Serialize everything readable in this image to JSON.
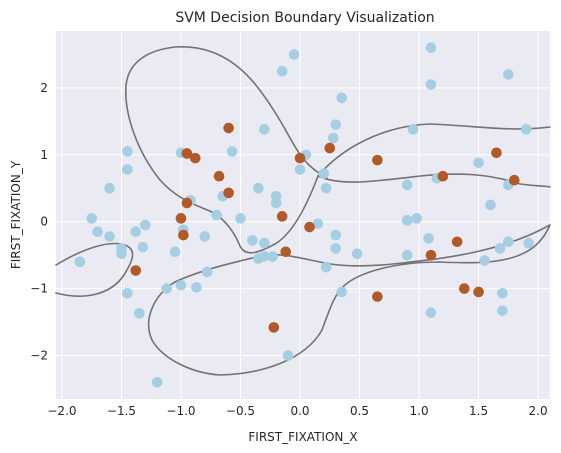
{
  "chart_data": {
    "type": "scatter",
    "title": "SVM Decision Boundary Visualization",
    "xlabel": "FIRST_FIXATION_X",
    "ylabel": "FIRST_FIXATION_Y",
    "xlim": [
      -2.05,
      2.1
    ],
    "ylim": [
      -2.65,
      2.85
    ],
    "xticks": [
      -2.0,
      -1.5,
      -1.0,
      -0.5,
      0.0,
      0.5,
      1.0,
      1.5,
      2.0
    ],
    "xtick_labels": [
      "−2.0",
      "−1.5",
      "−1.0",
      "−0.5",
      "0.0",
      "0.5",
      "1.0",
      "1.5",
      "2.0"
    ],
    "yticks": [
      2,
      1,
      0,
      -1,
      -2
    ],
    "ytick_labels": [
      "2",
      "1",
      "0",
      "−1",
      "−2"
    ],
    "grid": true,
    "background_color": "#eaeaf2",
    "boundary_color": "#737373",
    "series": [
      {
        "color": "#a6cee3",
        "points": [
          [
            1.1,
            2.6
          ],
          [
            -0.05,
            2.5
          ],
          [
            -0.15,
            2.25
          ],
          [
            1.75,
            2.2
          ],
          [
            1.1,
            2.05
          ],
          [
            0.35,
            1.85
          ],
          [
            -0.3,
            1.38
          ],
          [
            0.3,
            1.45
          ],
          [
            0.95,
            1.38
          ],
          [
            1.9,
            1.38
          ],
          [
            0.28,
            1.25
          ],
          [
            -1.45,
            1.05
          ],
          [
            -1.0,
            1.03
          ],
          [
            -0.57,
            1.05
          ],
          [
            0.05,
            1.0
          ],
          [
            1.5,
            0.88
          ],
          [
            -1.45,
            0.78
          ],
          [
            0.0,
            0.78
          ],
          [
            0.2,
            0.72
          ],
          [
            1.15,
            0.65
          ],
          [
            1.75,
            0.55
          ],
          [
            0.9,
            0.55
          ],
          [
            -1.6,
            0.5
          ],
          [
            -0.35,
            0.5
          ],
          [
            0.22,
            0.5
          ],
          [
            -0.65,
            0.38
          ],
          [
            -0.2,
            0.38
          ],
          [
            -0.92,
            0.32
          ],
          [
            -0.2,
            0.28
          ],
          [
            1.6,
            0.25
          ],
          [
            -0.5,
            0.05
          ],
          [
            -0.7,
            0.1
          ],
          [
            -1.75,
            0.05
          ],
          [
            0.15,
            -0.03
          ],
          [
            0.9,
            0.02
          ],
          [
            0.98,
            0.05
          ],
          [
            -1.3,
            -0.05
          ],
          [
            -1.7,
            -0.15
          ],
          [
            -1.38,
            -0.15
          ],
          [
            -0.98,
            -0.12
          ],
          [
            -0.8,
            -0.22
          ],
          [
            -1.6,
            -0.22
          ],
          [
            0.3,
            -0.2
          ],
          [
            -0.4,
            -0.28
          ],
          [
            -1.5,
            -0.4
          ],
          [
            -0.3,
            -0.32
          ],
          [
            1.08,
            -0.25
          ],
          [
            -1.32,
            -0.38
          ],
          [
            1.75,
            -0.3
          ],
          [
            1.92,
            -0.32
          ],
          [
            0.3,
            -0.4
          ],
          [
            -1.05,
            -0.45
          ],
          [
            -1.5,
            -0.48
          ],
          [
            -0.3,
            -0.52
          ],
          [
            -0.23,
            -0.52
          ],
          [
            0.48,
            -0.48
          ],
          [
            0.9,
            -0.5
          ],
          [
            1.68,
            -0.4
          ],
          [
            -1.85,
            -0.6
          ],
          [
            1.55,
            -0.58
          ],
          [
            0.22,
            -0.68
          ],
          [
            -0.35,
            -0.55
          ],
          [
            -0.78,
            -0.75
          ],
          [
            -1.0,
            -0.95
          ],
          [
            -0.87,
            -0.98
          ],
          [
            -1.12,
            -1.0
          ],
          [
            0.35,
            -1.05
          ],
          [
            -1.45,
            -1.07
          ],
          [
            1.7,
            -1.07
          ],
          [
            1.7,
            -1.33
          ],
          [
            1.1,
            -1.36
          ],
          [
            -1.35,
            -1.37
          ],
          [
            -0.1,
            -2.0
          ],
          [
            -1.2,
            -2.4
          ]
        ]
      },
      {
        "color": "#b15928",
        "points": [
          [
            -0.6,
            1.4
          ],
          [
            0.25,
            1.1
          ],
          [
            1.65,
            1.03
          ],
          [
            -0.95,
            1.02
          ],
          [
            -0.88,
            0.95
          ],
          [
            0.0,
            0.95
          ],
          [
            0.65,
            0.92
          ],
          [
            1.2,
            0.68
          ],
          [
            -0.68,
            0.68
          ],
          [
            1.8,
            0.62
          ],
          [
            -0.6,
            0.43
          ],
          [
            -0.95,
            0.28
          ],
          [
            -1.0,
            0.05
          ],
          [
            -0.15,
            0.08
          ],
          [
            0.08,
            -0.08
          ],
          [
            -0.98,
            -0.2
          ],
          [
            1.32,
            -0.3
          ],
          [
            -0.12,
            -0.45
          ],
          [
            1.1,
            -0.5
          ],
          [
            -1.38,
            -0.73
          ],
          [
            1.38,
            -1.0
          ],
          [
            1.5,
            -1.05
          ],
          [
            0.65,
            -1.12
          ],
          [
            -0.22,
            -1.58
          ]
        ]
      }
    ]
  }
}
